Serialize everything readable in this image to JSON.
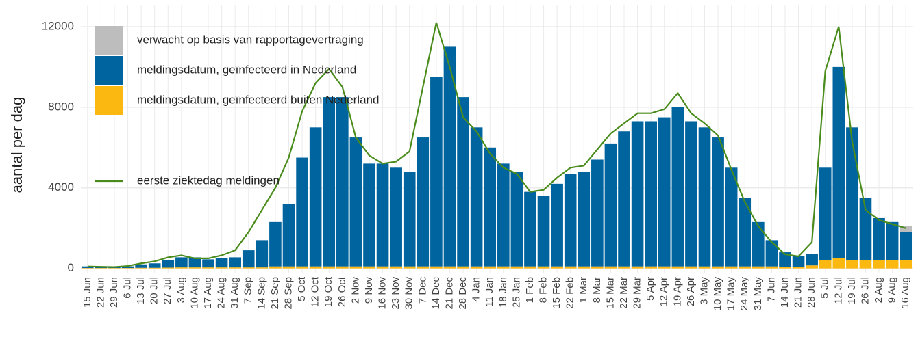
{
  "chart_data": {
    "type": "bar",
    "y_label": "aantal per dag",
    "categories": [
      "15 Jun",
      "22 Jun",
      "29 Jun",
      "6 Jul",
      "13 Jul",
      "20 Jul",
      "27 Jul",
      "3 Aug",
      "10 Aug",
      "17 Aug",
      "24 Aug",
      "31 Aug",
      "7 Sep",
      "14 Sep",
      "21 Sep",
      "28 Sep",
      "5 Oct",
      "12 Oct",
      "19 Oct",
      "26 Oct",
      "2 Nov",
      "9 Nov",
      "16 Nov",
      "23 Nov",
      "30 Nov",
      "7 Dec",
      "14 Dec",
      "21 Dec",
      "28 Dec",
      "4 Jan",
      "11 Jan",
      "18 Jan",
      "25 Jan",
      "1 Feb",
      "8 Feb",
      "15 Feb",
      "22 Feb",
      "1 Mar",
      "8 Mar",
      "15 Mar",
      "22 Mar",
      "29 Mar",
      "5 Apr",
      "12 Apr",
      "19 Apr",
      "26 Apr",
      "3 May",
      "10 May",
      "17 May",
      "24 May",
      "31 May",
      "7 Jun",
      "14 Jun",
      "21 Jun",
      "28 Jun",
      "5 Jul",
      "12 Jul",
      "19 Jul",
      "26 Jul",
      "2 Aug",
      "9 Aug",
      "16 Aug"
    ],
    "series": [
      {
        "name": "verwacht op basis van rapportagevertraging",
        "color": "#bdbdbd",
        "values": [
          0,
          0,
          0,
          0,
          0,
          0,
          0,
          0,
          0,
          0,
          0,
          0,
          0,
          0,
          0,
          0,
          0,
          0,
          0,
          0,
          0,
          0,
          0,
          0,
          0,
          0,
          0,
          0,
          0,
          0,
          0,
          0,
          0,
          0,
          0,
          0,
          0,
          0,
          0,
          0,
          0,
          0,
          0,
          0,
          0,
          0,
          0,
          0,
          0,
          0,
          0,
          0,
          0,
          0,
          0,
          0,
          0,
          0,
          0,
          0,
          0,
          300
        ]
      },
      {
        "name": "meldingsdatum, geïnfecteerd in Nederland",
        "color": "#00659e",
        "values": [
          80,
          60,
          50,
          80,
          170,
          220,
          360,
          500,
          500,
          400,
          450,
          500,
          850,
          1350,
          2200,
          3100,
          5400,
          6900,
          8400,
          8400,
          6400,
          5100,
          5100,
          4900,
          4700,
          6400,
          9400,
          10900,
          8400,
          6900,
          5900,
          5100,
          4700,
          3700,
          3500,
          4100,
          4600,
          4700,
          5300,
          6100,
          6700,
          7200,
          7200,
          7400,
          7900,
          7200,
          6900,
          6400,
          4900,
          3400,
          2200,
          1300,
          720,
          520,
          550,
          4600,
          9500,
          6600,
          3100,
          2100,
          1900,
          1400
        ]
      },
      {
        "name": "meldingsdatum, geïnfecteerd buiten Nederland",
        "color": "#fbb810",
        "values": [
          20,
          20,
          20,
          20,
          30,
          30,
          40,
          50,
          50,
          50,
          50,
          50,
          50,
          50,
          100,
          100,
          100,
          100,
          100,
          100,
          100,
          100,
          100,
          100,
          100,
          100,
          100,
          100,
          100,
          100,
          100,
          100,
          100,
          100,
          100,
          100,
          100,
          100,
          100,
          100,
          100,
          100,
          100,
          100,
          100,
          100,
          100,
          100,
          100,
          100,
          100,
          100,
          80,
          80,
          150,
          400,
          500,
          400,
          400,
          400,
          400,
          400
        ]
      },
      {
        "name": "eerste ziektedag meldingen",
        "color": "#4a8c1c",
        "chart": "line",
        "values": [
          100,
          80,
          70,
          120,
          250,
          350,
          550,
          650,
          500,
          500,
          650,
          900,
          1800,
          2900,
          4000,
          5500,
          7800,
          9200,
          9900,
          9000,
          6500,
          5600,
          5200,
          5300,
          5800,
          9000,
          12200,
          10000,
          7500,
          6800,
          5700,
          5000,
          4700,
          3800,
          3900,
          4500,
          5000,
          5100,
          5900,
          6700,
          7200,
          7700,
          7700,
          7900,
          8700,
          7700,
          7200,
          6600,
          4900,
          3300,
          2100,
          1300,
          700,
          600,
          1300,
          9800,
          12000,
          6300,
          2900,
          2400,
          2200,
          2000
        ]
      }
    ],
    "ylim": [
      -250,
      13050
    ],
    "yticks": [
      0,
      4000,
      8000,
      12000
    ],
    "grid": true,
    "legend": "top-left"
  }
}
